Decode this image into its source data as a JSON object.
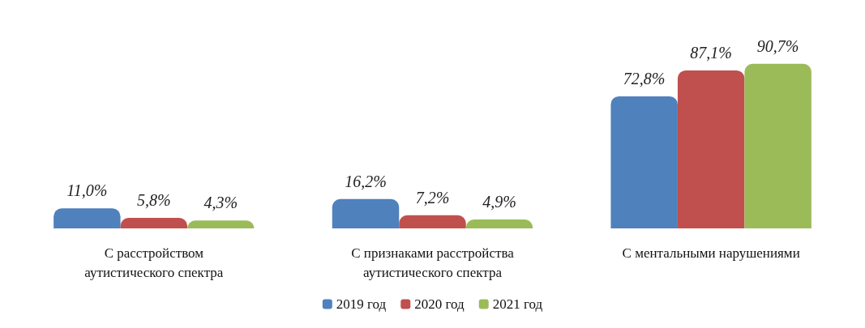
{
  "chart_data": {
    "type": "bar",
    "categories": [
      "С расстройством\nаутистического спектра",
      "С признаками расстройства\nаутистического спектра",
      "С ментальными нарушениями"
    ],
    "series": [
      {
        "name": "2019 год",
        "color": "#4f81bd",
        "values": [
          11.0,
          16.2,
          72.8
        ],
        "value_labels": [
          "11,0%",
          "16,2%",
          "72,8%"
        ]
      },
      {
        "name": "2020 год",
        "color": "#c0504d",
        "values": [
          5.8,
          7.2,
          87.1
        ],
        "value_labels": [
          "5,8%",
          "7,2%",
          "87,1%"
        ]
      },
      {
        "name": "2021 год",
        "color": "#9bbb59",
        "values": [
          4.3,
          4.9,
          90.7
        ],
        "value_labels": [
          "4,3%",
          "4,9%",
          "90,7%"
        ]
      }
    ],
    "legend": "bottom"
  }
}
